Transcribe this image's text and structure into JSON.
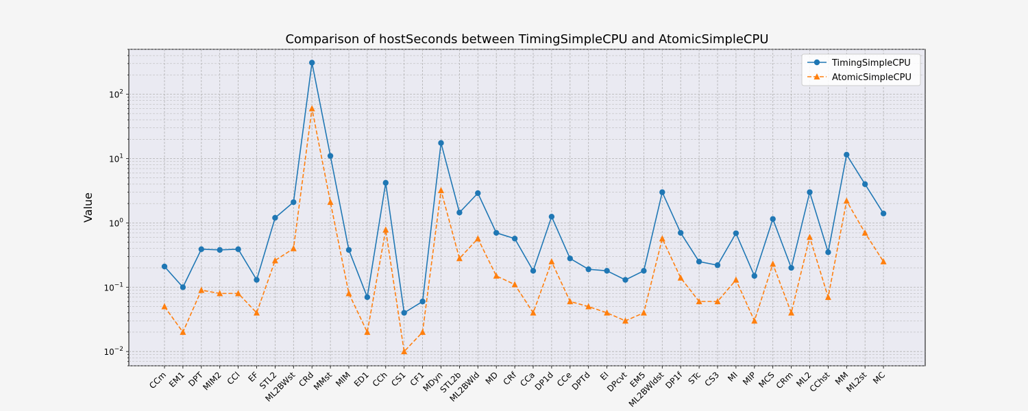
{
  "chart_data": {
    "type": "line",
    "title": "Comparison of hostSeconds between TimingSimpleCPU and AtomicSimpleCPU",
    "xlabel": "",
    "ylabel": "Value",
    "yscale": "log",
    "ylim": [
      0.006,
      500
    ],
    "grid": true,
    "legend_position": "top-right",
    "categories": [
      "CCm",
      "EM1",
      "DPT",
      "MIM2",
      "CCl",
      "EF",
      "STL2",
      "ML2BWst",
      "CRd",
      "MMst",
      "MIM",
      "ED1",
      "CCh",
      "CS1",
      "CF1",
      "MDyn",
      "STL2b",
      "ML2BWld",
      "MD",
      "CRf",
      "CCa",
      "DP1d",
      "CCe",
      "DPTd",
      "EI",
      "DPcvt",
      "EM5",
      "ML2BWldst",
      "DP1f",
      "STc",
      "CS3",
      "MI",
      "MIP",
      "MCS",
      "CRm",
      "ML2",
      "CChst",
      "MM",
      "ML2st",
      "MC"
    ],
    "series": [
      {
        "name": "TimingSimpleCPU",
        "color": "#1f77b4",
        "marker": "circle",
        "linestyle": "solid",
        "values": [
          0.21,
          0.1,
          0.39,
          0.38,
          0.39,
          0.13,
          1.2,
          2.1,
          310,
          11,
          0.38,
          0.07,
          4.2,
          0.04,
          0.06,
          17.5,
          1.45,
          2.9,
          0.7,
          0.57,
          0.18,
          1.25,
          0.28,
          0.19,
          0.18,
          0.13,
          0.18,
          3.0,
          0.7,
          0.25,
          0.22,
          0.69,
          0.15,
          1.15,
          0.2,
          3.0,
          0.35,
          11.5,
          4.0,
          1.4
        ]
      },
      {
        "name": "AtomicSimpleCPU",
        "color": "#ff7f0e",
        "marker": "triangle",
        "linestyle": "dashed",
        "values": [
          0.05,
          0.02,
          0.09,
          0.08,
          0.08,
          0.04,
          0.26,
          0.4,
          60,
          2.1,
          0.08,
          0.02,
          0.78,
          0.01,
          0.02,
          3.2,
          0.28,
          0.57,
          0.15,
          0.11,
          0.04,
          0.25,
          0.06,
          0.05,
          0.04,
          0.03,
          0.04,
          0.57,
          0.14,
          0.06,
          0.06,
          0.13,
          0.03,
          0.23,
          0.04,
          0.6,
          0.07,
          2.2,
          0.7,
          0.25
        ]
      }
    ],
    "yticks": [
      {
        "value": 0.01,
        "base": "10",
        "exp": "−2"
      },
      {
        "value": 0.1,
        "base": "10",
        "exp": "−1"
      },
      {
        "value": 1,
        "base": "10",
        "exp": "0"
      },
      {
        "value": 10,
        "base": "10",
        "exp": "1"
      },
      {
        "value": 100,
        "base": "10",
        "exp": "2"
      }
    ]
  }
}
